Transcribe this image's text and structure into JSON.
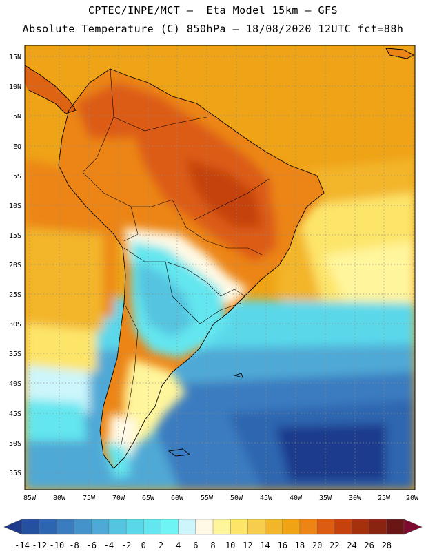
{
  "header": {
    "line1": "CPTEC/INPE/MCT –  Eta Model 15km – GFS",
    "line2": "Absolute Temperature (C) 850hPa – 18/08/2020 12UTC fct=88h"
  },
  "axes": {
    "lat_labels": [
      "15N",
      "10N",
      "5N",
      "EQ",
      "5S",
      "10S",
      "15S",
      "20S",
      "25S",
      "30S",
      "35S",
      "40S",
      "45S",
      "50S",
      "55S"
    ],
    "lon_labels": [
      "85W",
      "80W",
      "75W",
      "70W",
      "65W",
      "60W",
      "55W",
      "50W",
      "45W",
      "40W",
      "35W",
      "30W",
      "25W",
      "20W"
    ]
  },
  "colorbar": {
    "labels": [
      "-14",
      "-12",
      "-10",
      "-8",
      "-6",
      "-4",
      "-2",
      "0",
      "2",
      "4",
      "6",
      "8",
      "10",
      "12",
      "14",
      "16",
      "18",
      "20",
      "22",
      "24",
      "26",
      "28"
    ],
    "colors": [
      "#1e3a8c",
      "#23509f",
      "#2d66b0",
      "#3a7cc0",
      "#4593cb",
      "#4fa9d6",
      "#55c4e0",
      "#5ad8ea",
      "#63e6ef",
      "#6ef4f4",
      "#ccf6fb",
      "#fff9e5",
      "#fff59c",
      "#fde56a",
      "#f6cd4c",
      "#f3b52a",
      "#efa315",
      "#ec8516",
      "#dc5c12",
      "#c5420e",
      "#a4300c",
      "#892410",
      "#6a1616",
      "#7e0a2e"
    ]
  }
}
